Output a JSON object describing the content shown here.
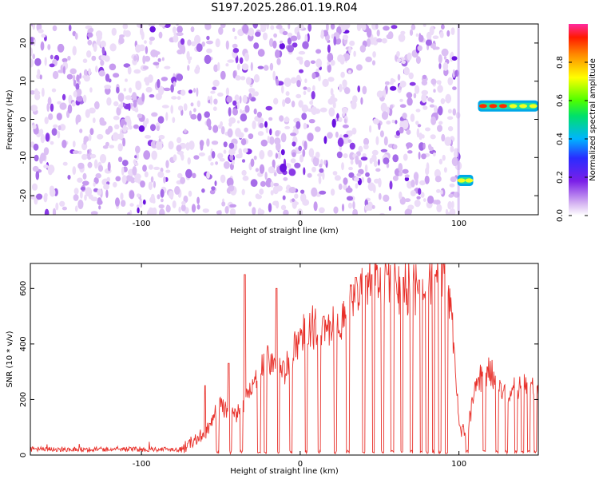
{
  "title": "S197.2025.286.01.19.R04",
  "chart_data": [
    {
      "type": "heatmap",
      "xlabel": "Height of straight line (km)",
      "ylabel": "Frequency (Hz)",
      "xlim": [
        -170,
        150
      ],
      "ylim": [
        -25,
        25
      ],
      "xticks": [
        -100,
        0,
        100
      ],
      "yticks": [
        -20,
        -10,
        0,
        10,
        20
      ],
      "colorbar": {
        "label": "Normalized spectral amplitude",
        "range": [
          0,
          1
        ],
        "ticks": [
          0.0,
          0.2,
          0.4,
          0.6,
          0.8
        ]
      },
      "noise_region": {
        "x_range": [
          -170,
          100
        ],
        "y_range": [
          -25,
          25
        ],
        "amplitude_range": [
          0.0,
          0.25
        ]
      },
      "signal": [
        {
          "x_range": [
            99,
            109
          ],
          "frequency": -16,
          "amplitude": 0.45
        },
        {
          "x_range": [
            112,
            150
          ],
          "frequency": 3.5,
          "amplitude": 0.95
        }
      ]
    },
    {
      "type": "line",
      "xlabel": "Height of straight line (km)",
      "ylabel": "SNR (10 * v/v)",
      "xlim": [
        -170,
        150
      ],
      "ylim": [
        0,
        690
      ],
      "xticks": [
        -100,
        0,
        100
      ],
      "yticks": [
        0,
        200,
        400,
        600
      ],
      "color": "#e8302a",
      "series": [
        {
          "envelope_x": [
            -170,
            -75,
            -60,
            -50,
            -40,
            -30,
            -20,
            -10,
            0,
            10,
            20,
            30,
            40,
            50,
            60,
            70,
            80,
            90,
            95,
            100,
            105,
            110,
            120,
            130,
            140,
            150
          ],
          "envelope_y": [
            20,
            20,
            80,
            180,
            150,
            240,
            340,
            300,
            420,
            470,
            460,
            540,
            600,
            620,
            610,
            590,
            600,
            650,
            560,
            120,
            50,
            250,
            300,
            210,
            250,
            230
          ],
          "dropouts_x": [
            -52,
            -44,
            -37,
            -26,
            -22,
            -14,
            -6,
            4,
            12,
            22,
            30,
            40,
            46,
            52,
            58,
            64,
            70,
            76,
            80,
            84,
            88,
            92,
            105,
            116,
            124,
            130,
            136,
            140,
            144,
            148
          ],
          "peaks_x": [
            -60,
            -45,
            -35,
            -15,
            5,
            15,
            35,
            45,
            55,
            65,
            75,
            85,
            90
          ],
          "peaks_y": [
            250,
            330,
            650,
            600,
            400,
            500,
            640,
            650,
            650,
            640,
            630,
            650,
            690
          ]
        }
      ]
    }
  ]
}
